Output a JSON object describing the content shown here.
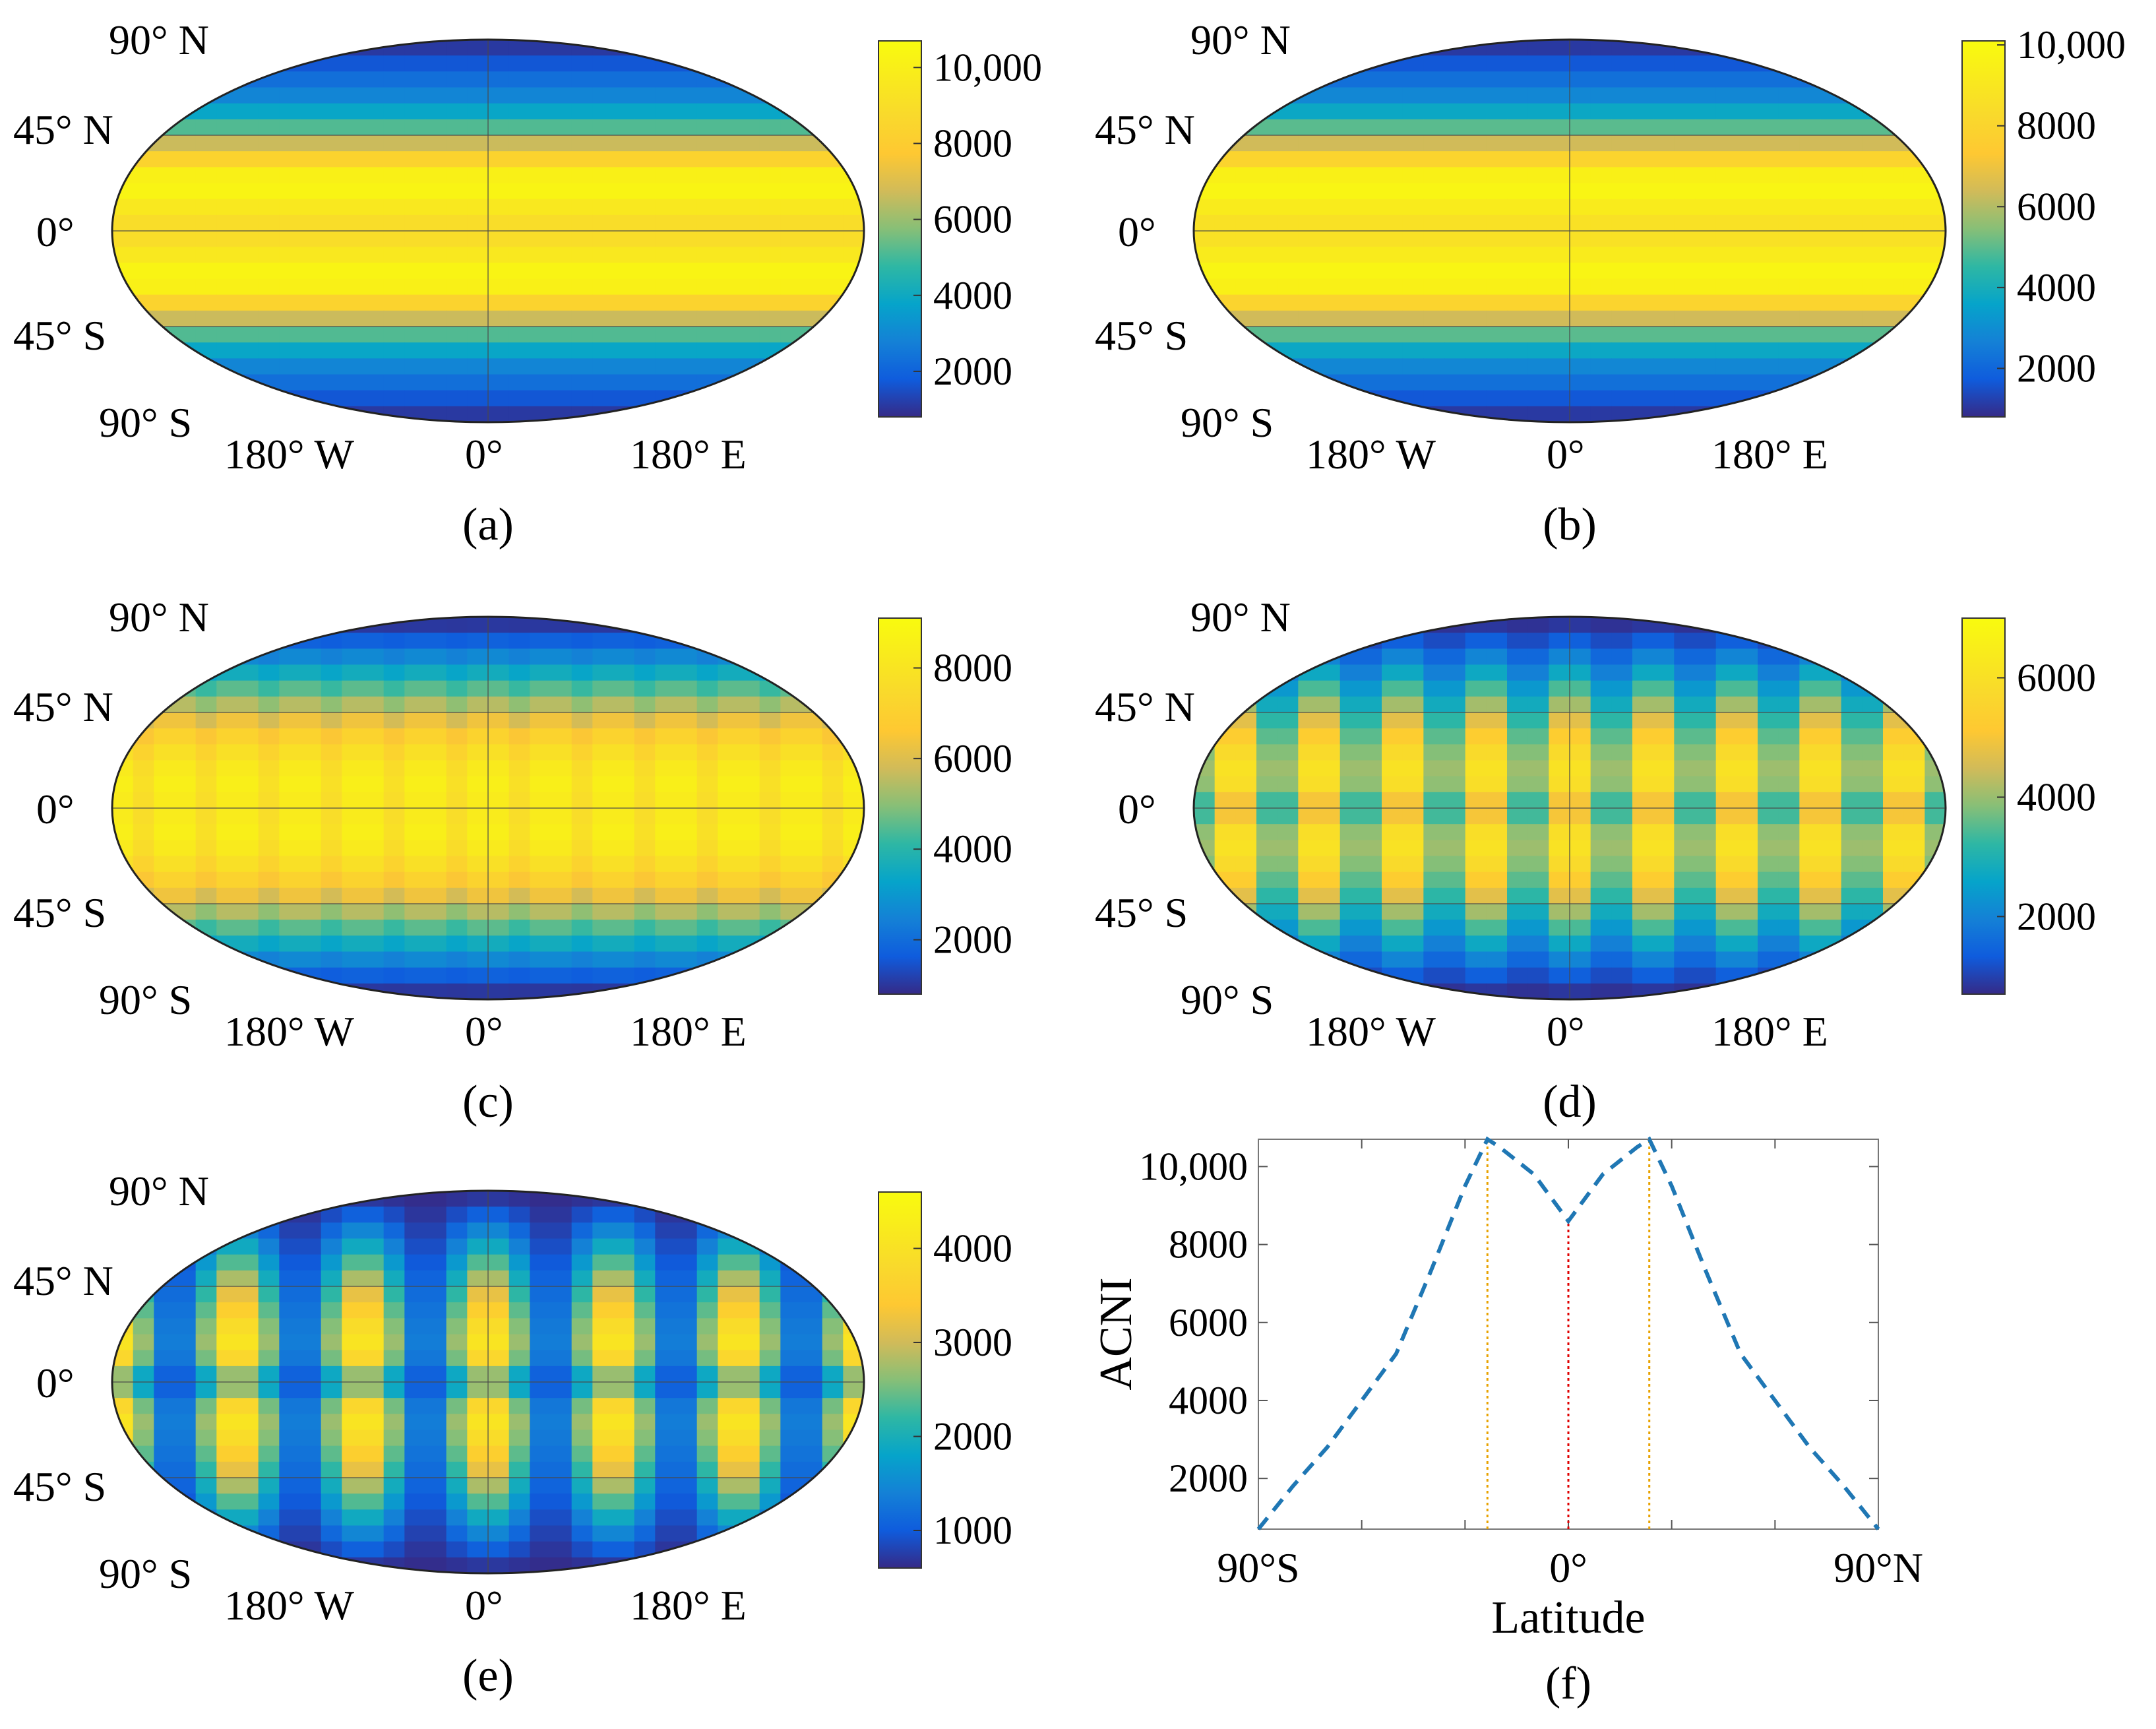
{
  "figure": {
    "panels": [
      {
        "id": "a",
        "caption": "(a)"
      },
      {
        "id": "b",
        "caption": "(b)"
      },
      {
        "id": "c",
        "caption": "(c)"
      },
      {
        "id": "d",
        "caption": "(d)"
      },
      {
        "id": "e",
        "caption": "(e)"
      },
      {
        "id": "f",
        "caption": "(f)"
      }
    ],
    "map_axes": {
      "lat_labels": [
        "90° N",
        "45° N",
        "0°",
        "45° S",
        "90° S"
      ],
      "lon_labels": [
        "180° W",
        "0°",
        "180° E"
      ]
    }
  },
  "chart_data": [
    {
      "panel": "a",
      "type": "heatmap",
      "title": "",
      "projection": "robinson",
      "colormap": "parula",
      "colorbar": {
        "range": [
          800,
          10700
        ],
        "ticks": [
          2000,
          4000,
          6000,
          8000,
          10000
        ],
        "tick_labels": [
          "2000",
          "4000",
          "6000",
          "8000",
          "10,000"
        ]
      },
      "pattern": "zonal",
      "zonal_profile": {
        "lat": [
          -90,
          -60,
          -45,
          -23.5,
          0,
          23.5,
          45,
          60,
          90
        ],
        "value": [
          800,
          3200,
          5800,
          10700,
          8600,
          10700,
          5800,
          3200,
          800
        ]
      }
    },
    {
      "panel": "b",
      "type": "heatmap",
      "title": "",
      "projection": "robinson",
      "colormap": "parula",
      "colorbar": {
        "range": [
          800,
          10100
        ],
        "ticks": [
          2000,
          4000,
          6000,
          8000,
          10000
        ],
        "tick_labels": [
          "2000",
          "4000",
          "6000",
          "8000",
          "10,000"
        ]
      },
      "pattern": "zonal",
      "zonal_profile": {
        "lat": [
          -90,
          -60,
          -45,
          -23.5,
          0,
          23.5,
          45,
          60,
          90
        ],
        "value": [
          800,
          3100,
          5600,
          10100,
          8400,
          10100,
          5600,
          3100,
          800
        ]
      }
    },
    {
      "panel": "c",
      "type": "heatmap",
      "title": "",
      "projection": "robinson",
      "colormap": "parula",
      "colorbar": {
        "range": [
          800,
          9100
        ],
        "ticks": [
          2000,
          4000,
          6000,
          8000
        ],
        "tick_labels": [
          "2000",
          "4000",
          "6000",
          "8000"
        ]
      },
      "pattern": "lobes",
      "lobes": {
        "count": 24,
        "depth": 0.12
      }
    },
    {
      "panel": "d",
      "type": "heatmap",
      "title": "",
      "projection": "robinson",
      "colormap": "parula",
      "colorbar": {
        "range": [
          700,
          7000
        ],
        "ticks": [
          2000,
          4000,
          6000
        ],
        "tick_labels": [
          "2000",
          "4000",
          "6000"
        ]
      },
      "pattern": "lobes",
      "lobes": {
        "count": 18,
        "depth": 0.5
      }
    },
    {
      "panel": "e",
      "type": "heatmap",
      "title": "",
      "projection": "robinson",
      "colormap": "parula",
      "colorbar": {
        "range": [
          600,
          4600
        ],
        "ticks": [
          1000,
          2000,
          3000,
          4000
        ],
        "tick_labels": [
          "1000",
          "2000",
          "3000",
          "4000"
        ]
      },
      "pattern": "lobes",
      "lobes": {
        "count": 12,
        "depth": 0.85
      }
    },
    {
      "panel": "f",
      "type": "line",
      "title": "",
      "xlabel": "Latitude",
      "ylabel": "ACNI",
      "xlim": [
        -90,
        90
      ],
      "ylim": [
        700,
        10700
      ],
      "x_ticks": [
        -90,
        0,
        90
      ],
      "x_tick_labels": [
        "90°S",
        "0°",
        "90°N"
      ],
      "y_ticks": [
        2000,
        4000,
        6000,
        8000,
        10000
      ],
      "y_tick_labels": [
        "2000",
        "4000",
        "6000",
        "8000",
        "10,000"
      ],
      "series": [
        {
          "name": "ACNI",
          "color": "#1f77b4",
          "style": "dashed",
          "x": [
            -90,
            -80,
            -70,
            -60,
            -50,
            -40,
            -30,
            -23.5,
            -20,
            -10,
            0,
            10,
            20,
            23.5,
            30,
            40,
            50,
            60,
            70,
            80,
            90
          ],
          "y": [
            700,
            1800,
            2800,
            4000,
            5200,
            7300,
            9500,
            10700,
            10500,
            9800,
            8600,
            9800,
            10500,
            10700,
            9500,
            7300,
            5200,
            4000,
            2800,
            1800,
            700
          ]
        }
      ],
      "reference_lines": [
        {
          "x": -23.5,
          "color": "#e8a200",
          "style": "dotted"
        },
        {
          "x": 0,
          "color": "#e00000",
          "style": "dotted",
          "y_top": 8600
        },
        {
          "x": 23.5,
          "color": "#e8a200",
          "style": "dotted"
        }
      ]
    }
  ]
}
